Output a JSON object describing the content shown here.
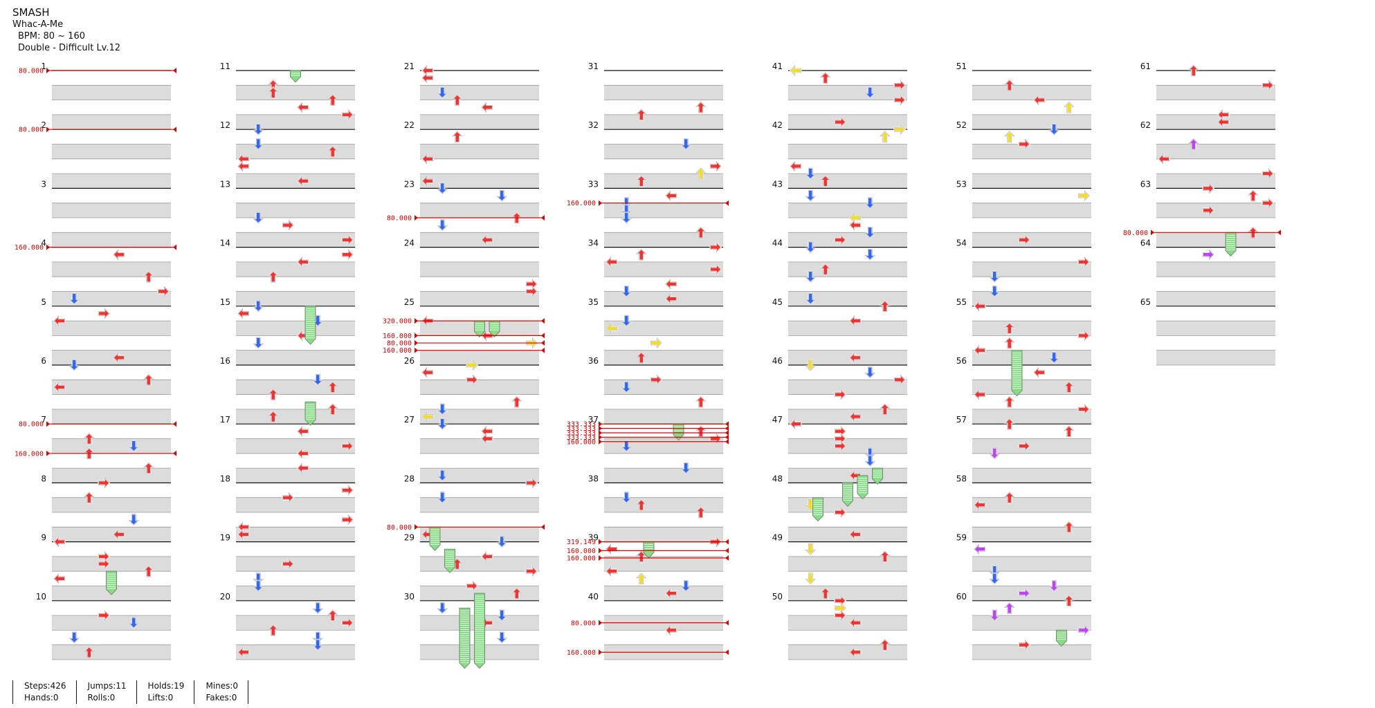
{
  "song": {
    "title": "SMASH",
    "artist": "Whac-A-Me",
    "bpm": "BPM: 80 ~ 160",
    "chart": "Double - Difficult  Lv.12"
  },
  "colors": {
    "left": "#ee3333",
    "down": "#3366ee",
    "up": "#ee3333",
    "right": "#ee3333",
    "yellow": "#f2dc2a",
    "purple": "#bb44ee",
    "hold": "#86dd86",
    "bpm_line": "#e00000",
    "lane_shade": "#dcdcdc"
  },
  "columns": [
    {
      "measures": [
        "1",
        "2",
        "3",
        "4",
        "5",
        "6",
        "7",
        "8",
        "9",
        "10"
      ]
    },
    {
      "measures": [
        "11",
        "12",
        "13",
        "14",
        "15",
        "16",
        "17",
        "18",
        "19",
        "20"
      ]
    },
    {
      "measures": [
        "21",
        "22",
        "23",
        "24",
        "25",
        "26",
        "27",
        "28",
        "29",
        "30"
      ]
    },
    {
      "measures": [
        "31",
        "32",
        "33",
        "34",
        "35",
        "36",
        "37",
        "38",
        "39",
        "40"
      ]
    },
    {
      "measures": [
        "41",
        "42",
        "43",
        "44",
        "45",
        "46",
        "47",
        "48",
        "49",
        "50"
      ]
    },
    {
      "measures": [
        "51",
        "52",
        "53",
        "54",
        "55",
        "56",
        "57",
        "58",
        "59",
        "60"
      ]
    },
    {
      "measures": [
        "61",
        "62",
        "63",
        "64",
        "65"
      ]
    }
  ],
  "bpm_changes": [
    {
      "col": 0,
      "beat": 0,
      "label": "80.000"
    },
    {
      "col": 0,
      "beat": 4,
      "label": "80.000"
    },
    {
      "col": 0,
      "beat": 12,
      "label": "160.000"
    },
    {
      "col": 0,
      "beat": 24,
      "label": "80.000"
    },
    {
      "col": 0,
      "beat": 26,
      "label": "160.000"
    },
    {
      "col": 2,
      "beat": 10,
      "label": "80.000"
    },
    {
      "col": 2,
      "beat": 17,
      "label": "320.000"
    },
    {
      "col": 2,
      "beat": 18,
      "label": "160.000"
    },
    {
      "col": 2,
      "beat": 18.5,
      "label": "80.000"
    },
    {
      "col": 2,
      "beat": 19,
      "label": "160.000"
    },
    {
      "col": 2,
      "beat": 31,
      "label": "80.000"
    },
    {
      "col": 3,
      "beat": 9,
      "label": "160.000"
    },
    {
      "col": 3,
      "beat": 24,
      "label": "333.333"
    },
    {
      "col": 3,
      "beat": 24.3,
      "label": "333.333"
    },
    {
      "col": 3,
      "beat": 24.6,
      "label": "333.333"
    },
    {
      "col": 3,
      "beat": 24.9,
      "label": "333.333"
    },
    {
      "col": 3,
      "beat": 25.2,
      "label": "160.000"
    },
    {
      "col": 3,
      "beat": 32,
      "label": "319.149"
    },
    {
      "col": 3,
      "beat": 32.6,
      "label": "160.000"
    },
    {
      "col": 3,
      "beat": 33.1,
      "label": "160.000"
    },
    {
      "col": 3,
      "beat": 37.5,
      "label": "80.000"
    },
    {
      "col": 3,
      "beat": 39.5,
      "label": "160.000"
    },
    {
      "col": 6,
      "beat": 11,
      "label": "80.000"
    }
  ],
  "stats": {
    "steps": "Steps:426",
    "hands": "Hands:0",
    "jumps": "Jumps:11",
    "rolls": "Rolls:0",
    "holds": "Holds:19",
    "lifts": "Lifts:0",
    "mines": "Mines:0",
    "fakes": "Fakes:0"
  }
}
